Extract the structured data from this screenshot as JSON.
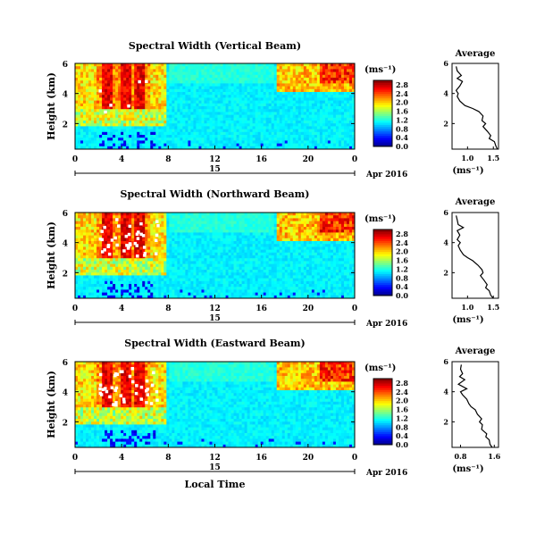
{
  "chart_data": [
    {
      "type": "heatmap",
      "title": "Spectral Width (Vertical Beam)",
      "xlabel": "",
      "ylabel": "Height (km)",
      "x_ticks": [
        "0",
        "4",
        "8",
        "12",
        "16",
        "20",
        "0"
      ],
      "xlim_hours": [
        0,
        24
      ],
      "y_ticks": [
        "2",
        "4",
        "6"
      ],
      "ylim_km": [
        0.3,
        6.0
      ],
      "date_label_left": "15",
      "date_label_right": "Apr 2016",
      "colorbar": {
        "unit": "(ms⁻¹)",
        "ticks": [
          "0.0",
          "0.4",
          "0.8",
          "1.2",
          "1.6",
          "2.0",
          "2.4",
          "2.8"
        ],
        "range": [
          0.0,
          3.0
        ]
      },
      "profile": {
        "title": "Average",
        "xlabel": "(ms⁻¹)",
        "x_ticks": [
          "1.0",
          "1.5"
        ],
        "xlim": [
          0.7,
          1.6
        ],
        "y_ticks": [
          "2",
          "4",
          "6"
        ],
        "height_km": [
          0.3,
          0.5,
          0.8,
          1.0,
          1.2,
          1.5,
          1.8,
          2.0,
          2.2,
          2.5,
          2.8,
          3.0,
          3.2,
          3.5,
          3.8,
          4.0,
          4.2,
          4.5,
          4.8,
          5.0,
          5.2,
          5.5,
          5.8
        ],
        "values": [
          1.58,
          1.55,
          1.52,
          1.42,
          1.45,
          1.38,
          1.3,
          1.35,
          1.28,
          1.3,
          1.22,
          1.1,
          0.95,
          0.85,
          0.8,
          0.82,
          0.78,
          0.85,
          0.9,
          0.8,
          0.88,
          0.8,
          0.78
        ]
      }
    },
    {
      "type": "heatmap",
      "title": "Spectral Width (Northward Beam)",
      "xlabel": "",
      "ylabel": "Height (km)",
      "x_ticks": [
        "0",
        "4",
        "8",
        "12",
        "16",
        "20",
        "0"
      ],
      "xlim_hours": [
        0,
        24
      ],
      "y_ticks": [
        "2",
        "4",
        "6"
      ],
      "ylim_km": [
        0.3,
        6.0
      ],
      "date_label_left": "15",
      "date_label_right": "Apr 2016",
      "colorbar": {
        "unit": "(ms⁻¹)",
        "ticks": [
          "0.0",
          "0.4",
          "0.8",
          "1.2",
          "1.6",
          "2.0",
          "2.4",
          "2.8"
        ],
        "range": [
          0.0,
          3.0
        ]
      },
      "profile": {
        "title": "Average",
        "xlabel": "(ms⁻¹)",
        "x_ticks": [
          "1.0",
          "1.5"
        ],
        "xlim": [
          0.7,
          1.6
        ],
        "y_ticks": [
          "2",
          "4",
          "6"
        ],
        "height_km": [
          0.3,
          0.5,
          0.8,
          1.0,
          1.2,
          1.5,
          1.8,
          2.0,
          2.2,
          2.5,
          2.8,
          3.0,
          3.2,
          3.5,
          3.8,
          4.0,
          4.2,
          4.5,
          4.8,
          5.0,
          5.2,
          5.5,
          5.8
        ],
        "values": [
          1.5,
          1.45,
          1.42,
          1.35,
          1.38,
          1.32,
          1.25,
          1.3,
          1.28,
          1.2,
          1.1,
          1.0,
          0.92,
          0.86,
          0.82,
          0.86,
          0.8,
          0.85,
          0.8,
          0.92,
          0.82,
          0.8,
          0.78
        ]
      }
    },
    {
      "type": "heatmap",
      "title": "Spectral Width (Eastward Beam)",
      "xlabel": "Local Time",
      "ylabel": "Height (km)",
      "x_ticks": [
        "0",
        "4",
        "8",
        "12",
        "16",
        "20",
        "0"
      ],
      "xlim_hours": [
        0,
        24
      ],
      "y_ticks": [
        "2",
        "4",
        "6"
      ],
      "ylim_km": [
        0.3,
        6.0
      ],
      "date_label_left": "15",
      "date_label_right": "Apr 2016",
      "colorbar": {
        "unit": "(ms⁻¹)",
        "ticks": [
          "0.0",
          "0.4",
          "0.8",
          "1.2",
          "1.6",
          "2.0",
          "2.4",
          "2.8"
        ],
        "range": [
          0.0,
          3.0
        ]
      },
      "profile": {
        "title": "Average",
        "xlabel": "(ms⁻¹)",
        "x_ticks": [
          "0.8",
          "1.6"
        ],
        "xlim": [
          0.6,
          1.7
        ],
        "y_ticks": [
          "2",
          "4",
          "6"
        ],
        "height_km": [
          0.3,
          0.5,
          0.8,
          1.0,
          1.2,
          1.5,
          1.8,
          2.0,
          2.2,
          2.5,
          2.8,
          3.0,
          3.2,
          3.5,
          3.8,
          4.0,
          4.2,
          4.5,
          4.8,
          5.0,
          5.2,
          5.5,
          5.8
        ],
        "values": [
          1.55,
          1.5,
          1.48,
          1.4,
          1.42,
          1.3,
          1.32,
          1.25,
          1.3,
          1.2,
          1.15,
          1.05,
          1.0,
          0.95,
          0.85,
          0.8,
          0.95,
          0.75,
          0.9,
          0.78,
          0.85,
          0.8,
          0.82
        ]
      }
    }
  ]
}
